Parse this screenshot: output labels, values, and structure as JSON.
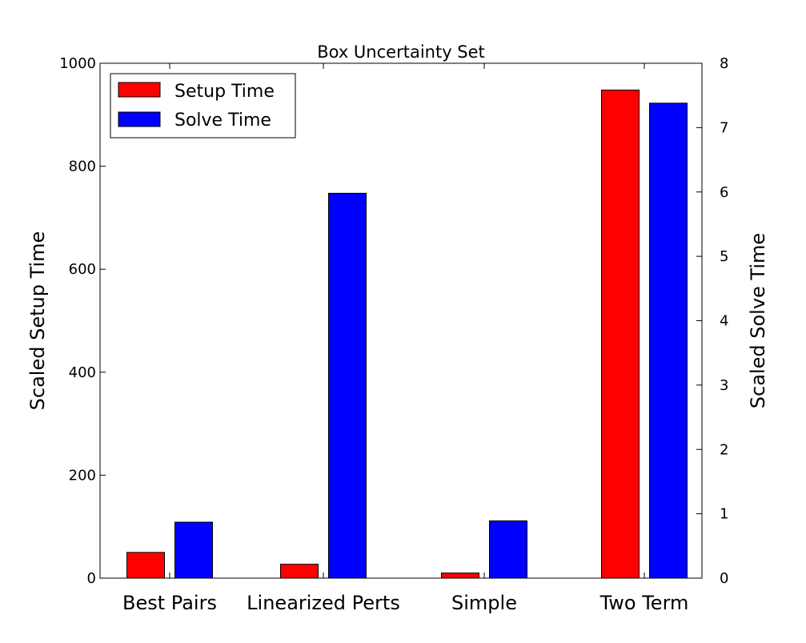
{
  "chart_data": {
    "type": "bar",
    "title": "Box Uncertainty Set",
    "categories": [
      "Best Pairs",
      "Linearized Perts",
      "Simple",
      "Two Term"
    ],
    "series": [
      {
        "name": "Setup Time",
        "axis": "left",
        "color": "#ff0000",
        "values": [
          50,
          27,
          10,
          948
        ]
      },
      {
        "name": "Solve Time",
        "axis": "right",
        "color": "#0000ff",
        "values": [
          0.87,
          5.98,
          0.89,
          7.38
        ]
      }
    ],
    "ylabel": "Scaled Setup Time",
    "ylim": [
      0,
      1000
    ],
    "yticks": [
      "0",
      "200",
      "400",
      "600",
      "800",
      "1000"
    ],
    "y2label": "Scaled Solve Time",
    "y2lim": [
      0,
      8
    ],
    "y2ticks": [
      "0",
      "1",
      "2",
      "3",
      "4",
      "5",
      "6",
      "7",
      "8"
    ],
    "grid": false,
    "legend_position": "top-left"
  }
}
